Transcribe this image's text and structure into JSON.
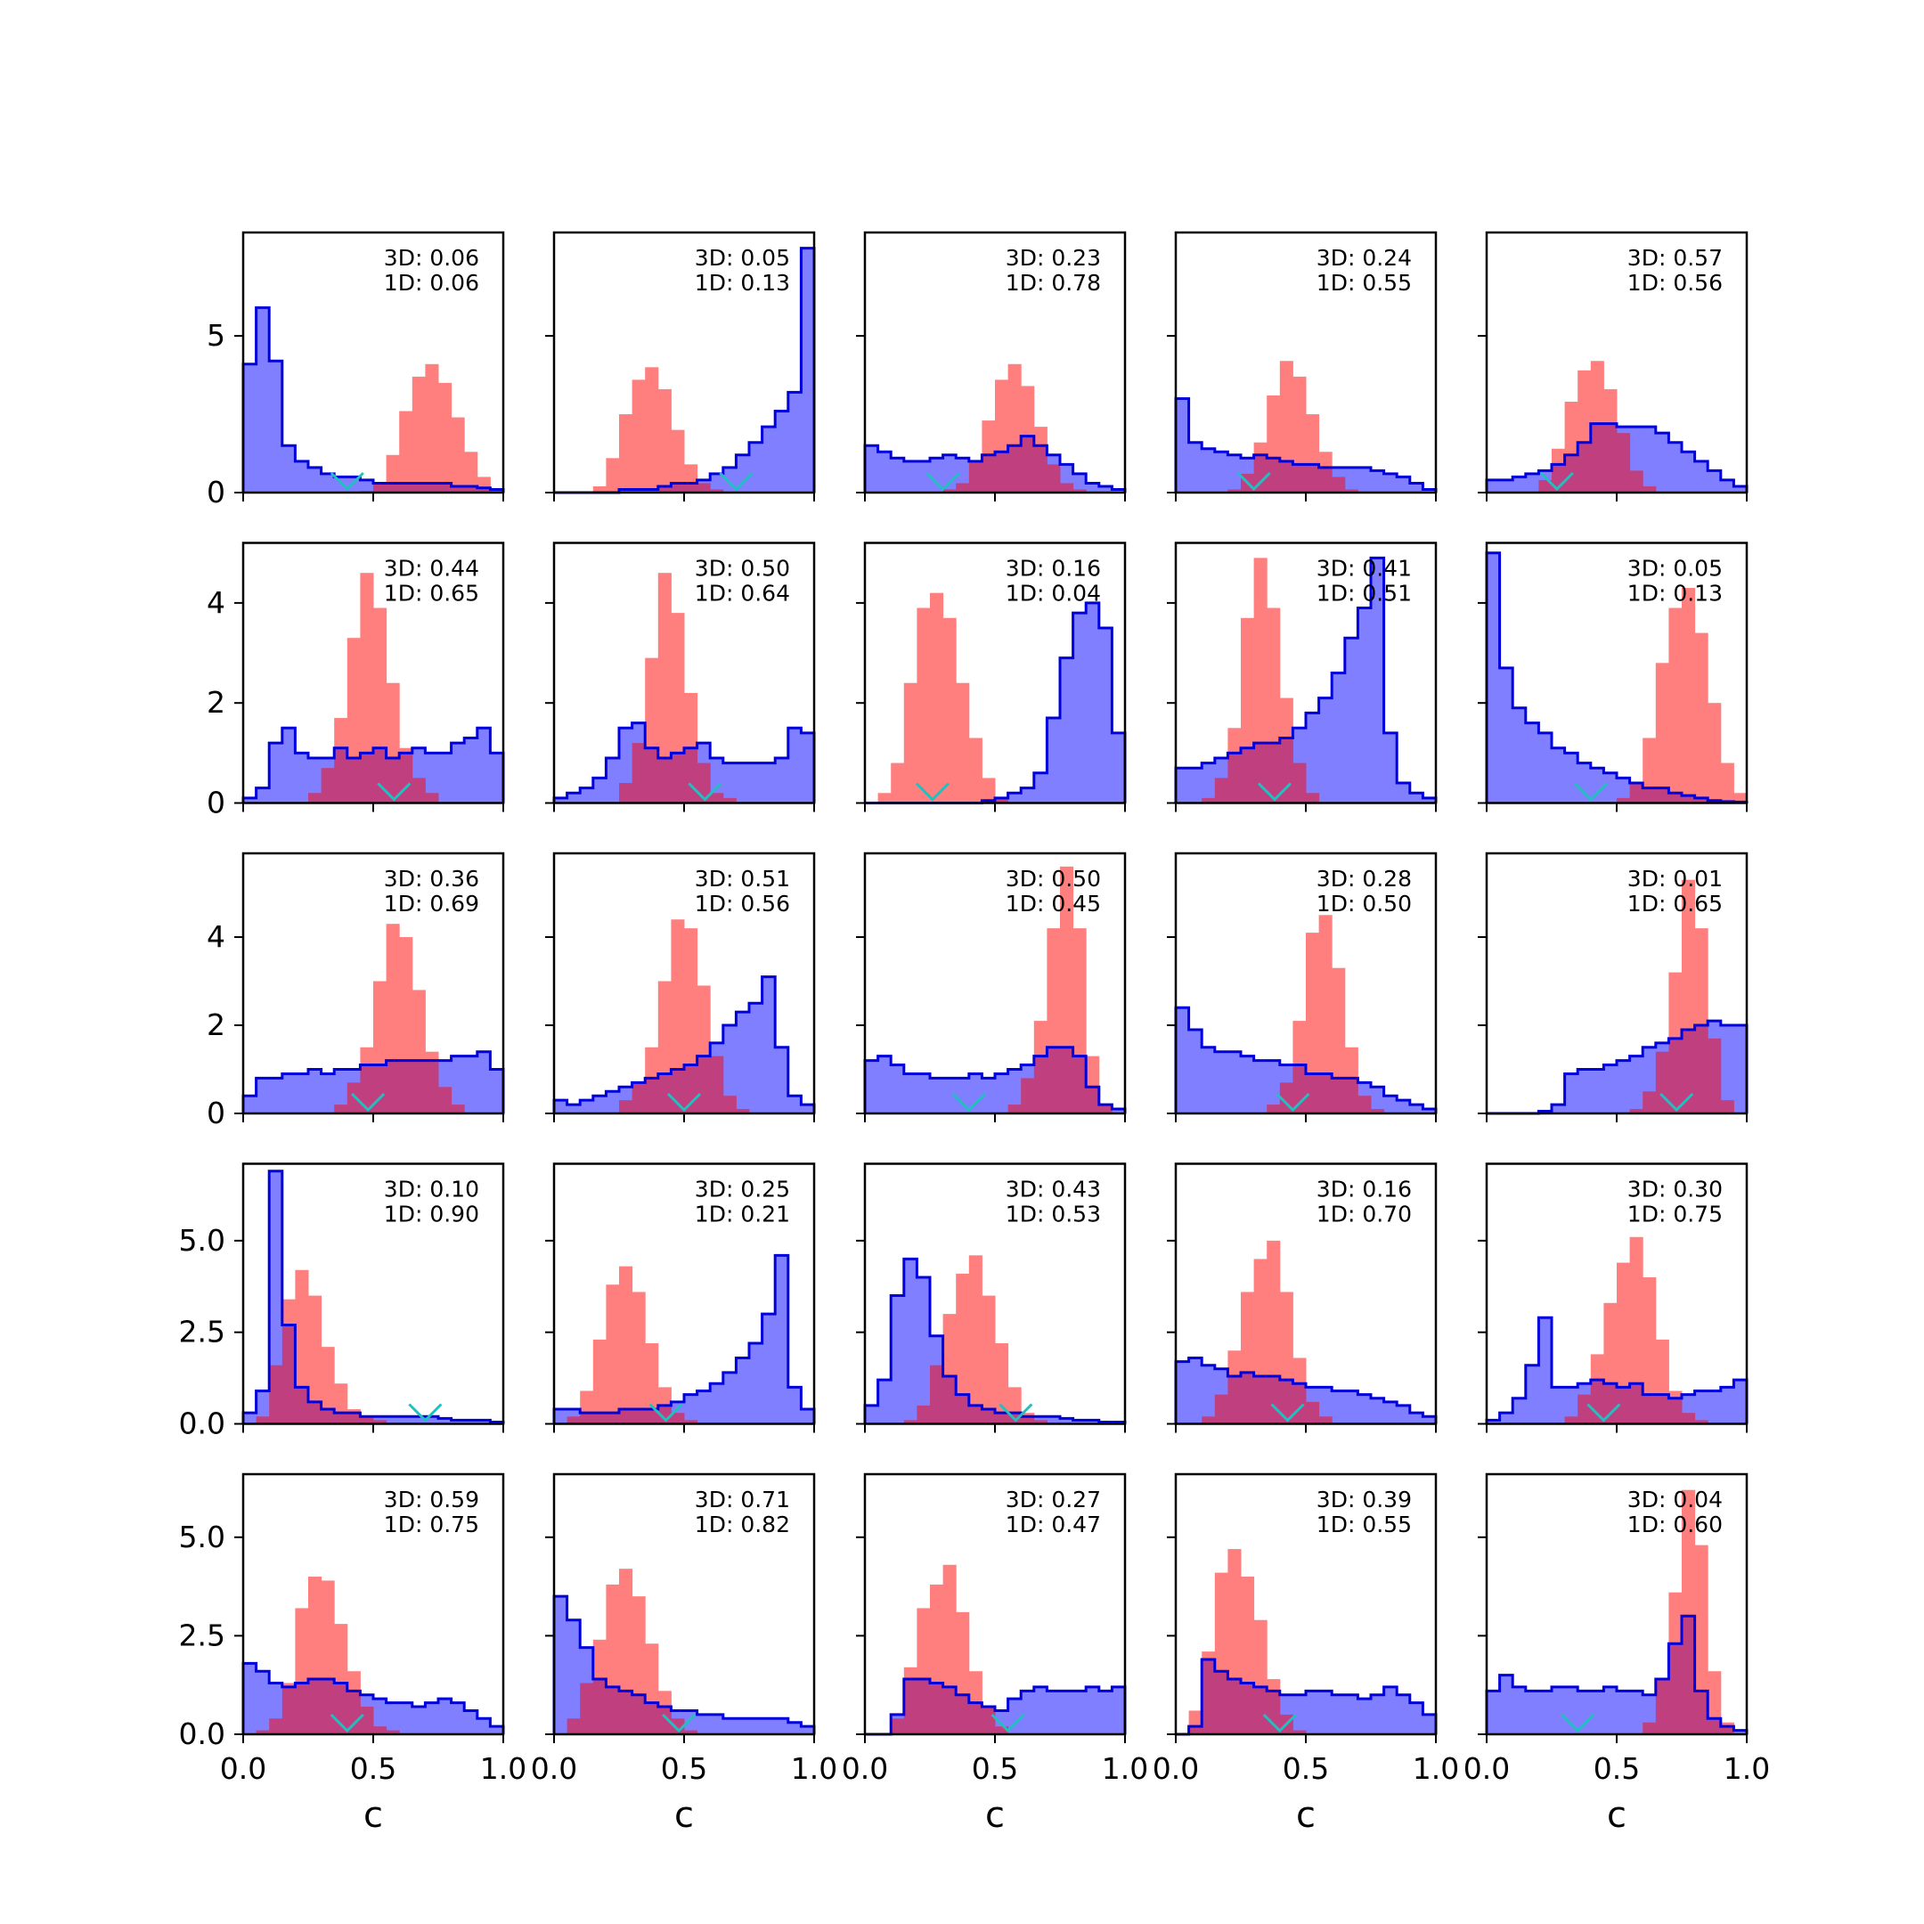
{
  "figure": {
    "rows": 5,
    "cols": 5,
    "xlabel": "c",
    "x_ticks": [
      "0.0",
      "0.5",
      "1.0"
    ],
    "colors": {
      "blue_fill": "#7f7fff",
      "blue_edge": "#0000dd",
      "red_fill": "#ff7f7f",
      "overlap": "#c0407f",
      "marker": "#20c0c0"
    },
    "row_axes": [
      {
        "ylim": [
          0,
          8.3
        ],
        "ticks": [
          0,
          5
        ],
        "tick_labels": [
          "0",
          "5"
        ]
      },
      {
        "ylim": [
          0,
          5.2
        ],
        "ticks": [
          0,
          2,
          4
        ],
        "tick_labels": [
          "0",
          "2",
          "4"
        ]
      },
      {
        "ylim": [
          0,
          5.9
        ],
        "ticks": [
          0,
          2,
          4
        ],
        "tick_labels": [
          "0",
          "2",
          "4"
        ]
      },
      {
        "ylim": [
          0,
          7.1
        ],
        "ticks": [
          0.0,
          2.5,
          5.0
        ],
        "tick_labels": [
          "0.0",
          "2.5",
          "5.0"
        ]
      },
      {
        "ylim": [
          0,
          6.6
        ],
        "ticks": [
          0.0,
          2.5,
          5.0
        ],
        "tick_labels": [
          "0.0",
          "2.5",
          "5.0"
        ]
      }
    ]
  },
  "chart_data": [
    {
      "type": "histogram",
      "r3d": "3D: 0.06",
      "r1d": "1D: 0.06",
      "marker": 0.4,
      "blue": [
        4.1,
        5.9,
        4.2,
        1.5,
        1.0,
        0.8,
        0.6,
        0.5,
        0.5,
        0.4,
        0.3,
        0.3,
        0.3,
        0.3,
        0.3,
        0.3,
        0.2,
        0.2,
        0.15,
        0.1
      ],
      "red": [
        0,
        0,
        0,
        0,
        0,
        0,
        0,
        0,
        0,
        0.05,
        0.3,
        1.2,
        2.6,
        3.7,
        4.1,
        3.5,
        2.4,
        1.3,
        0.5,
        0.1
      ]
    },
    {
      "type": "histogram",
      "r3d": "3D: 0.05",
      "r1d": "1D: 0.13",
      "marker": 0.7,
      "blue": [
        0,
        0,
        0,
        0,
        0,
        0.1,
        0.1,
        0.1,
        0.2,
        0.3,
        0.3,
        0.4,
        0.6,
        0.8,
        1.2,
        1.6,
        2.1,
        2.6,
        3.2,
        7.8
      ],
      "red": [
        0,
        0,
        0,
        0.2,
        1.1,
        2.5,
        3.6,
        4.0,
        3.3,
        2.0,
        0.9,
        0.3,
        0.1,
        0,
        0,
        0,
        0,
        0,
        0,
        0
      ]
    },
    {
      "type": "histogram",
      "r3d": "3D: 0.23",
      "r1d": "1D: 0.78",
      "marker": 0.3,
      "blue": [
        1.5,
        1.3,
        1.1,
        1.0,
        1.0,
        1.1,
        1.2,
        1.1,
        1.0,
        1.2,
        1.3,
        1.5,
        1.8,
        1.5,
        1.2,
        0.9,
        0.6,
        0.3,
        0.2,
        0.1
      ],
      "red": [
        0,
        0,
        0,
        0,
        0,
        0,
        0.1,
        0.3,
        1.0,
        2.3,
        3.6,
        4.1,
        3.4,
        2.1,
        0.9,
        0.3,
        0.1,
        0,
        0,
        0
      ]
    },
    {
      "type": "histogram",
      "r3d": "3D: 0.24",
      "r1d": "1D: 0.55",
      "marker": 0.3,
      "blue": [
        3.0,
        1.6,
        1.4,
        1.3,
        1.2,
        1.1,
        1.2,
        1.1,
        1.0,
        0.9,
        0.9,
        0.8,
        0.8,
        0.8,
        0.8,
        0.7,
        0.6,
        0.5,
        0.3,
        0.1
      ],
      "red": [
        0,
        0,
        0,
        0,
        0.1,
        0.6,
        1.6,
        3.1,
        4.2,
        3.7,
        2.5,
        1.3,
        0.5,
        0.1,
        0,
        0,
        0,
        0,
        0,
        0
      ]
    },
    {
      "type": "histogram",
      "r3d": "3D: 0.57",
      "r1d": "1D: 0.56",
      "marker": 0.27,
      "blue": [
        0.4,
        0.4,
        0.5,
        0.6,
        0.7,
        0.9,
        1.2,
        1.6,
        2.2,
        2.2,
        2.1,
        2.1,
        2.1,
        1.9,
        1.6,
        1.3,
        1.0,
        0.7,
        0.4,
        0.2
      ],
      "red": [
        0,
        0,
        0,
        0,
        0.4,
        1.4,
        2.9,
        3.9,
        4.2,
        3.3,
        1.9,
        0.7,
        0.2,
        0,
        0,
        0,
        0,
        0,
        0,
        0
      ]
    },
    {
      "type": "histogram",
      "r3d": "3D: 0.44",
      "r1d": "1D: 0.65",
      "marker": 0.58,
      "blue": [
        0.1,
        0.3,
        1.2,
        1.5,
        1.0,
        0.9,
        0.9,
        1.1,
        0.9,
        1.0,
        1.1,
        0.9,
        1.0,
        1.1,
        1.0,
        1.0,
        1.2,
        1.3,
        1.5,
        1.0
      ],
      "red": [
        0,
        0,
        0,
        0,
        0,
        0.2,
        0.7,
        1.7,
        3.3,
        4.6,
        3.9,
        2.4,
        1.1,
        0.5,
        0.2,
        0,
        0,
        0,
        0,
        0
      ]
    },
    {
      "type": "histogram",
      "r3d": "3D: 0.50",
      "r1d": "1D: 0.64",
      "marker": 0.58,
      "blue": [
        0.1,
        0.2,
        0.3,
        0.5,
        0.9,
        1.5,
        1.6,
        1.1,
        0.9,
        1.0,
        1.1,
        1.2,
        0.9,
        0.8,
        0.8,
        0.8,
        0.8,
        0.9,
        1.5,
        1.4
      ],
      "red": [
        0,
        0,
        0,
        0,
        0,
        0.4,
        1.2,
        2.9,
        4.6,
        3.8,
        2.2,
        0.8,
        0.2,
        0.1,
        0,
        0,
        0,
        0,
        0,
        0
      ]
    },
    {
      "type": "histogram",
      "r3d": "3D: 0.16",
      "r1d": "1D: 0.04",
      "marker": 0.26,
      "blue": [
        0,
        0,
        0,
        0,
        0,
        0,
        0,
        0,
        0,
        0.05,
        0.1,
        0.2,
        0.3,
        0.6,
        1.7,
        2.9,
        3.8,
        4.0,
        3.5,
        1.4
      ],
      "red": [
        0,
        0.2,
        0.8,
        2.4,
        3.9,
        4.2,
        3.7,
        2.4,
        1.3,
        0.5,
        0.1,
        0,
        0,
        0,
        0,
        0,
        0,
        0,
        0,
        0
      ]
    },
    {
      "type": "histogram",
      "r3d": "3D: 0.41",
      "r1d": "1D: 0.51",
      "marker": 0.38,
      "blue": [
        0.7,
        0.7,
        0.8,
        0.9,
        1.0,
        1.1,
        1.2,
        1.2,
        1.3,
        1.5,
        1.8,
        2.1,
        2.6,
        3.3,
        3.9,
        4.9,
        1.4,
        0.4,
        0.2,
        0.1
      ],
      "red": [
        0,
        0,
        0.1,
        0.5,
        1.5,
        3.7,
        4.9,
        3.9,
        2.1,
        0.8,
        0.2,
        0,
        0,
        0,
        0,
        0,
        0,
        0,
        0,
        0
      ]
    },
    {
      "type": "histogram",
      "r3d": "3D: 0.05",
      "r1d": "1D: 0.13",
      "marker": 0.4,
      "blue": [
        5.0,
        2.7,
        1.9,
        1.6,
        1.4,
        1.1,
        1.0,
        0.8,
        0.7,
        0.6,
        0.5,
        0.4,
        0.3,
        0.3,
        0.2,
        0.15,
        0.1,
        0.05,
        0.03,
        0.02
      ],
      "red": [
        0,
        0,
        0,
        0,
        0,
        0,
        0,
        0,
        0,
        0,
        0.1,
        0.4,
        1.3,
        2.8,
        3.9,
        4.3,
        3.4,
        2.0,
        0.8,
        0.2
      ]
    },
    {
      "type": "histogram",
      "r3d": "3D: 0.36",
      "r1d": "1D: 0.69",
      "marker": 0.48,
      "blue": [
        0.4,
        0.8,
        0.8,
        0.9,
        0.9,
        1.0,
        0.9,
        1.0,
        1.0,
        1.1,
        1.1,
        1.2,
        1.2,
        1.2,
        1.2,
        1.2,
        1.3,
        1.3,
        1.4,
        1.0
      ],
      "red": [
        0,
        0,
        0,
        0,
        0,
        0,
        0,
        0.2,
        0.7,
        1.5,
        3.0,
        4.3,
        4.0,
        2.8,
        1.4,
        0.6,
        0.2,
        0,
        0,
        0
      ]
    },
    {
      "type": "histogram",
      "r3d": "3D: 0.51",
      "r1d": "1D: 0.56",
      "marker": 0.5,
      "blue": [
        0.3,
        0.2,
        0.3,
        0.4,
        0.5,
        0.6,
        0.7,
        0.8,
        0.9,
        1.0,
        1.1,
        1.3,
        1.6,
        2.0,
        2.3,
        2.5,
        3.1,
        1.5,
        0.4,
        0.2
      ],
      "red": [
        0,
        0,
        0,
        0,
        0,
        0.3,
        0.7,
        1.5,
        3.0,
        4.4,
        4.2,
        2.9,
        1.3,
        0.4,
        0.1,
        0,
        0,
        0,
        0,
        0
      ]
    },
    {
      "type": "histogram",
      "r3d": "3D: 0.50",
      "r1d": "1D: 0.45",
      "marker": 0.4,
      "blue": [
        1.2,
        1.3,
        1.1,
        0.9,
        0.9,
        0.8,
        0.8,
        0.8,
        0.9,
        0.8,
        0.9,
        1.0,
        1.1,
        1.3,
        1.5,
        1.5,
        1.3,
        0.6,
        0.2,
        0.1
      ],
      "red": [
        0,
        0,
        0,
        0,
        0,
        0,
        0,
        0,
        0,
        0,
        0,
        0.2,
        0.8,
        2.1,
        4.2,
        5.6,
        4.2,
        1.3,
        0.2,
        0
      ]
    },
    {
      "type": "histogram",
      "r3d": "3D: 0.28",
      "r1d": "1D: 0.50",
      "marker": 0.45,
      "blue": [
        2.4,
        1.9,
        1.5,
        1.4,
        1.4,
        1.3,
        1.2,
        1.2,
        1.1,
        1.1,
        0.9,
        0.9,
        0.8,
        0.8,
        0.7,
        0.6,
        0.4,
        0.3,
        0.2,
        0.1
      ],
      "red": [
        0,
        0,
        0,
        0,
        0,
        0,
        0,
        0.2,
        0.7,
        2.1,
        4.1,
        4.5,
        3.3,
        1.5,
        0.4,
        0.1,
        0,
        0,
        0,
        0
      ]
    },
    {
      "type": "histogram",
      "r3d": "3D: 0.01",
      "r1d": "1D: 0.65",
      "marker": 0.73,
      "blue": [
        0,
        0,
        0,
        0,
        0.05,
        0.2,
        0.9,
        1.0,
        1.0,
        1.1,
        1.2,
        1.3,
        1.5,
        1.6,
        1.7,
        1.9,
        2.0,
        2.1,
        2.0,
        2.0
      ],
      "red": [
        0,
        0,
        0,
        0,
        0,
        0,
        0,
        0,
        0,
        0,
        0,
        0.1,
        0.5,
        1.4,
        3.2,
        5.3,
        4.2,
        1.7,
        0.3,
        0
      ]
    },
    {
      "type": "histogram",
      "r3d": "3D: 0.10",
      "r1d": "1D: 0.90",
      "marker": 0.7,
      "blue": [
        0.3,
        0.9,
        6.9,
        2.7,
        1.0,
        0.6,
        0.4,
        0.3,
        0.3,
        0.2,
        0.2,
        0.2,
        0.2,
        0.2,
        0.2,
        0.15,
        0.1,
        0.1,
        0.1,
        0.05
      ],
      "red": [
        0,
        0.2,
        1.6,
        3.4,
        4.2,
        3.5,
        2.1,
        1.1,
        0.4,
        0.2,
        0.1,
        0,
        0,
        0,
        0,
        0,
        0,
        0,
        0,
        0
      ]
    },
    {
      "type": "histogram",
      "r3d": "3D: 0.25",
      "r1d": "1D: 0.21",
      "marker": 0.43,
      "blue": [
        0.4,
        0.4,
        0.3,
        0.3,
        0.3,
        0.4,
        0.4,
        0.4,
        0.5,
        0.6,
        0.8,
        0.9,
        1.1,
        1.4,
        1.8,
        2.2,
        3.0,
        4.6,
        1.0,
        0.4
      ],
      "red": [
        0,
        0.2,
        0.9,
        2.3,
        3.8,
        4.3,
        3.6,
        2.2,
        1.0,
        0.3,
        0.1,
        0,
        0,
        0,
        0,
        0,
        0,
        0,
        0,
        0
      ]
    },
    {
      "type": "histogram",
      "r3d": "3D: 0.43",
      "r1d": "1D: 0.53",
      "marker": 0.58,
      "blue": [
        0.5,
        1.2,
        3.5,
        4.5,
        4.0,
        2.4,
        1.3,
        0.8,
        0.5,
        0.4,
        0.3,
        0.3,
        0.2,
        0.2,
        0.2,
        0.15,
        0.1,
        0.1,
        0.05,
        0.05
      ],
      "red": [
        0,
        0,
        0,
        0.1,
        0.5,
        1.6,
        3.0,
        4.1,
        4.6,
        3.5,
        2.2,
        1.0,
        0.3,
        0.1,
        0,
        0,
        0,
        0,
        0,
        0
      ]
    },
    {
      "type": "histogram",
      "r3d": "3D: 0.16",
      "r1d": "1D: 0.70",
      "marker": 0.43,
      "blue": [
        1.7,
        1.8,
        1.6,
        1.5,
        1.3,
        1.4,
        1.3,
        1.3,
        1.2,
        1.1,
        1.0,
        1.0,
        0.9,
        0.9,
        0.8,
        0.7,
        0.6,
        0.5,
        0.3,
        0.2
      ],
      "red": [
        0,
        0,
        0.2,
        0.8,
        2.0,
        3.6,
        4.5,
        5.0,
        3.6,
        1.8,
        0.6,
        0.2,
        0,
        0,
        0,
        0,
        0,
        0,
        0,
        0
      ]
    },
    {
      "type": "histogram",
      "r3d": "3D: 0.30",
      "r1d": "1D: 0.75",
      "marker": 0.45,
      "blue": [
        0.1,
        0.3,
        0.7,
        1.6,
        2.9,
        1.0,
        1.0,
        1.1,
        1.2,
        1.1,
        1.0,
        1.1,
        0.8,
        0.8,
        0.7,
        0.8,
        0.9,
        0.9,
        1.0,
        1.2
      ],
      "red": [
        0,
        0,
        0,
        0,
        0,
        0,
        0.2,
        0.8,
        1.9,
        3.3,
        4.4,
        5.1,
        4.0,
        2.3,
        0.9,
        0.3,
        0.1,
        0,
        0,
        0
      ]
    },
    {
      "type": "histogram",
      "r3d": "3D: 0.59",
      "r1d": "1D: 0.75",
      "marker": 0.4,
      "blue": [
        1.8,
        1.6,
        1.3,
        1.2,
        1.3,
        1.4,
        1.4,
        1.3,
        1.1,
        1.0,
        0.9,
        0.8,
        0.8,
        0.7,
        0.8,
        0.9,
        0.8,
        0.6,
        0.4,
        0.2
      ],
      "red": [
        0,
        0.1,
        0.4,
        1.3,
        3.2,
        4.0,
        3.9,
        2.8,
        1.6,
        0.7,
        0.2,
        0.1,
        0,
        0,
        0,
        0,
        0,
        0,
        0,
        0
      ]
    },
    {
      "type": "histogram",
      "r3d": "3D: 0.71",
      "r1d": "1D: 0.82",
      "marker": 0.48,
      "blue": [
        3.5,
        2.9,
        2.2,
        1.4,
        1.2,
        1.1,
        1.0,
        0.8,
        0.7,
        0.6,
        0.6,
        0.5,
        0.5,
        0.4,
        0.4,
        0.4,
        0.4,
        0.4,
        0.3,
        0.2
      ],
      "red": [
        0,
        0.4,
        1.3,
        2.4,
        3.8,
        4.2,
        3.5,
        2.3,
        1.1,
        0.4,
        0.1,
        0,
        0,
        0,
        0,
        0,
        0,
        0,
        0,
        0
      ]
    },
    {
      "type": "histogram",
      "r3d": "3D: 0.27",
      "r1d": "1D: 0.47",
      "marker": 0.55,
      "blue": [
        0,
        0,
        0.5,
        1.4,
        1.4,
        1.3,
        1.2,
        1.0,
        0.8,
        0.7,
        0.6,
        0.9,
        1.1,
        1.2,
        1.1,
        1.1,
        1.1,
        1.2,
        1.1,
        1.2
      ],
      "red": [
        0,
        0,
        0.4,
        1.7,
        3.2,
        3.8,
        4.3,
        3.1,
        1.6,
        0.7,
        0.2,
        0,
        0,
        0,
        0,
        0,
        0,
        0,
        0,
        0
      ]
    },
    {
      "type": "histogram",
      "r3d": "3D: 0.39",
      "r1d": "1D: 0.55",
      "marker": 0.4,
      "blue": [
        0,
        0.2,
        1.9,
        1.6,
        1.4,
        1.3,
        1.2,
        1.1,
        1.0,
        1.0,
        1.1,
        1.1,
        1.0,
        1.0,
        0.9,
        1.0,
        1.2,
        1.0,
        0.8,
        0.5
      ],
      "red": [
        0,
        0.6,
        2.1,
        4.1,
        4.7,
        4.0,
        2.9,
        1.4,
        0.5,
        0.1,
        0,
        0,
        0,
        0,
        0,
        0,
        0,
        0,
        0,
        0
      ]
    },
    {
      "type": "histogram",
      "r3d": "3D: 0.04",
      "r1d": "1D: 0.60",
      "marker": 0.35,
      "blue": [
        1.1,
        1.5,
        1.2,
        1.1,
        1.1,
        1.2,
        1.2,
        1.1,
        1.1,
        1.2,
        1.1,
        1.1,
        1.0,
        1.4,
        2.3,
        3.0,
        1.1,
        0.4,
        0.2,
        0.1
      ],
      "red": [
        0,
        0,
        0,
        0,
        0,
        0,
        0,
        0,
        0,
        0,
        0,
        0,
        0.3,
        1.4,
        3.6,
        6.2,
        4.8,
        1.6,
        0.3,
        0
      ]
    }
  ]
}
